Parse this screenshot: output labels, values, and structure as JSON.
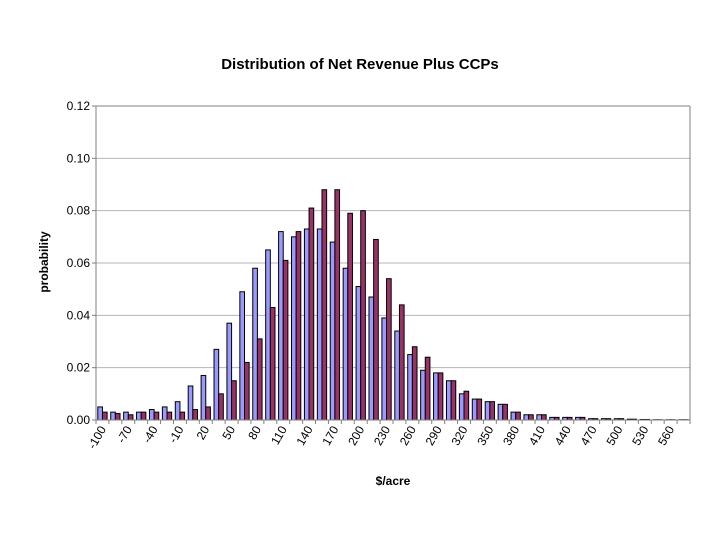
{
  "chart_data": {
    "type": "bar",
    "title": "Distribution of Net Revenue Plus CCPs",
    "xlabel": "$/acre",
    "ylabel": "probability",
    "ylim": [
      0,
      0.12
    ],
    "y_ticks": [
      "0.00",
      "0.02",
      "0.04",
      "0.06",
      "0.08",
      "0.10",
      "0.12"
    ],
    "x_tick_labels": [
      "-100",
      "-70",
      "-40",
      "-10",
      "20",
      "50",
      "80",
      "110",
      "140",
      "170",
      "200",
      "230",
      "260",
      "290",
      "320",
      "350",
      "380",
      "410",
      "440",
      "470",
      "500",
      "530",
      "560"
    ],
    "grid": true,
    "legend": "none",
    "categories": [
      "-100",
      "-85",
      "-70",
      "-55",
      "-40",
      "-25",
      "-10",
      "5",
      "20",
      "35",
      "50",
      "65",
      "80",
      "95",
      "110",
      "125",
      "140",
      "155",
      "170",
      "185",
      "200",
      "215",
      "230",
      "245",
      "260",
      "275",
      "290",
      "305",
      "320",
      "335",
      "350",
      "365",
      "380",
      "395",
      "410",
      "425",
      "440",
      "455",
      "470",
      "485",
      "500",
      "515",
      "530",
      "545",
      "560",
      "575"
    ],
    "series": [
      {
        "color": "#9999ff",
        "values": [
          0.005,
          0.003,
          0.003,
          0.003,
          0.004,
          0.005,
          0.007,
          0.013,
          0.017,
          0.027,
          0.037,
          0.049,
          0.058,
          0.065,
          0.072,
          0.07,
          0.073,
          0.073,
          0.068,
          0.058,
          0.051,
          0.047,
          0.039,
          0.034,
          0.025,
          0.019,
          0.018,
          0.015,
          0.01,
          0.008,
          0.007,
          0.006,
          0.003,
          0.002,
          0.002,
          0.001,
          0.001,
          0.001,
          0.0005,
          0.0005,
          0.0005,
          0.0003,
          0.0002,
          0.0001,
          0.0001,
          0.0001
        ]
      },
      {
        "color": "#993366",
        "values": [
          0.003,
          0.0025,
          0.002,
          0.003,
          0.003,
          0.003,
          0.003,
          0.004,
          0.005,
          0.01,
          0.015,
          0.022,
          0.031,
          0.043,
          0.061,
          0.072,
          0.081,
          0.088,
          0.088,
          0.079,
          0.08,
          0.069,
          0.054,
          0.044,
          0.028,
          0.024,
          0.018,
          0.015,
          0.011,
          0.008,
          0.007,
          0.006,
          0.003,
          0.002,
          0.002,
          0.001,
          0.001,
          0.001,
          0.0005,
          0.0005,
          0.0005,
          0.0003,
          0.0002,
          0.0001,
          0.0001,
          0.0001
        ]
      }
    ]
  }
}
